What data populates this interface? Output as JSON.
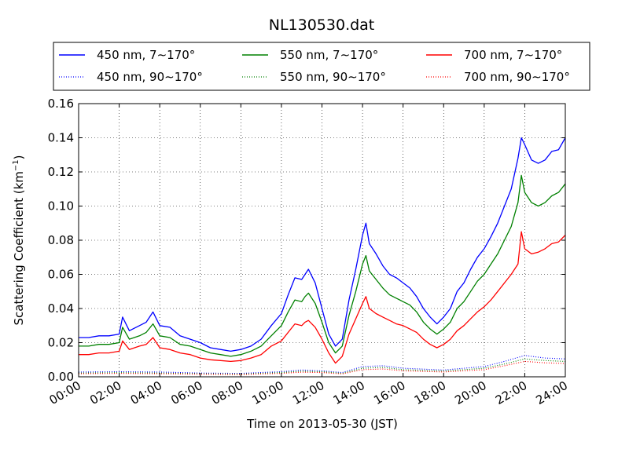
{
  "chart_data": {
    "type": "line",
    "title": "NL130530.dat",
    "xlabel": "Time on 2013-05-30 (JST)",
    "ylabel": "Scattering Coefficient (km",
    "ylabel_sup": "−1",
    "ylabel_close": ")",
    "x_ticks": [
      "00:00",
      "02:00",
      "04:00",
      "06:00",
      "08:00",
      "10:00",
      "12:00",
      "14:00",
      "16:00",
      "18:00",
      "20:00",
      "22:00",
      "24:00"
    ],
    "y_ticks": [
      "0.00",
      "0.02",
      "0.04",
      "0.06",
      "0.08",
      "0.10",
      "0.12",
      "0.14",
      "0.16"
    ],
    "xlim": [
      "00:00",
      "24:00"
    ],
    "ylim": [
      0,
      0.16
    ],
    "grid": true,
    "legend_placement": "top, outside plot, 3 columns",
    "series": [
      {
        "name": "450 nm, 7∼170°",
        "color": "#0000ff",
        "style": "solid",
        "x": [
          "00:00",
          "00:30",
          "01:00",
          "01:30",
          "02:00",
          "02:10",
          "02:30",
          "03:00",
          "03:20",
          "03:40",
          "04:00",
          "04:30",
          "05:00",
          "05:30",
          "06:00",
          "06:30",
          "07:00",
          "07:30",
          "08:00",
          "08:30",
          "09:00",
          "09:30",
          "10:00",
          "10:20",
          "10:40",
          "11:00",
          "11:10",
          "11:20",
          "11:40",
          "12:00",
          "12:20",
          "12:40",
          "13:00",
          "13:20",
          "13:40",
          "14:00",
          "14:10",
          "14:20",
          "14:40",
          "15:00",
          "15:20",
          "15:40",
          "16:00",
          "16:20",
          "16:40",
          "17:00",
          "17:20",
          "17:40",
          "18:00",
          "18:20",
          "18:40",
          "19:00",
          "19:20",
          "19:40",
          "20:00",
          "20:20",
          "20:40",
          "21:00",
          "21:20",
          "21:40",
          "21:50",
          "22:00",
          "22:20",
          "22:40",
          "23:00",
          "23:20",
          "23:40",
          "24:00"
        ],
        "values": [
          0.023,
          0.023,
          0.024,
          0.024,
          0.025,
          0.035,
          0.027,
          0.03,
          0.032,
          0.038,
          0.03,
          0.029,
          0.024,
          0.022,
          0.02,
          0.017,
          0.016,
          0.015,
          0.016,
          0.018,
          0.022,
          0.03,
          0.037,
          0.048,
          0.058,
          0.057,
          0.06,
          0.063,
          0.055,
          0.04,
          0.025,
          0.018,
          0.022,
          0.045,
          0.063,
          0.083,
          0.09,
          0.078,
          0.072,
          0.065,
          0.06,
          0.058,
          0.055,
          0.052,
          0.047,
          0.04,
          0.035,
          0.031,
          0.035,
          0.04,
          0.05,
          0.055,
          0.063,
          0.07,
          0.075,
          0.082,
          0.09,
          0.1,
          0.11,
          0.128,
          0.14,
          0.136,
          0.127,
          0.125,
          0.127,
          0.132,
          0.133,
          0.14
        ]
      },
      {
        "name": "550 nm, 7∼170°",
        "color": "#008000",
        "style": "solid",
        "x": [
          "00:00",
          "00:30",
          "01:00",
          "01:30",
          "02:00",
          "02:10",
          "02:30",
          "03:00",
          "03:20",
          "03:40",
          "04:00",
          "04:30",
          "05:00",
          "05:30",
          "06:00",
          "06:30",
          "07:00",
          "07:30",
          "08:00",
          "08:30",
          "09:00",
          "09:30",
          "10:00",
          "10:20",
          "10:40",
          "11:00",
          "11:10",
          "11:20",
          "11:40",
          "12:00",
          "12:20",
          "12:40",
          "13:00",
          "13:20",
          "13:40",
          "14:00",
          "14:10",
          "14:20",
          "14:40",
          "15:00",
          "15:20",
          "15:40",
          "16:00",
          "16:20",
          "16:40",
          "17:00",
          "17:20",
          "17:40",
          "18:00",
          "18:20",
          "18:40",
          "19:00",
          "19:20",
          "19:40",
          "20:00",
          "20:20",
          "20:40",
          "21:00",
          "21:20",
          "21:40",
          "21:50",
          "22:00",
          "22:20",
          "22:40",
          "23:00",
          "23:20",
          "23:40",
          "24:00"
        ],
        "values": [
          0.018,
          0.018,
          0.019,
          0.019,
          0.02,
          0.029,
          0.022,
          0.024,
          0.026,
          0.031,
          0.024,
          0.023,
          0.019,
          0.018,
          0.016,
          0.014,
          0.013,
          0.012,
          0.013,
          0.015,
          0.018,
          0.024,
          0.03,
          0.038,
          0.045,
          0.044,
          0.047,
          0.049,
          0.043,
          0.032,
          0.02,
          0.014,
          0.018,
          0.036,
          0.05,
          0.066,
          0.071,
          0.062,
          0.057,
          0.052,
          0.048,
          0.046,
          0.044,
          0.042,
          0.038,
          0.032,
          0.028,
          0.025,
          0.028,
          0.032,
          0.04,
          0.044,
          0.05,
          0.056,
          0.06,
          0.066,
          0.072,
          0.08,
          0.088,
          0.102,
          0.118,
          0.108,
          0.102,
          0.1,
          0.102,
          0.106,
          0.108,
          0.113
        ]
      },
      {
        "name": "700 nm, 7∼170°",
        "color": "#ff0000",
        "style": "solid",
        "x": [
          "00:00",
          "00:30",
          "01:00",
          "01:30",
          "02:00",
          "02:10",
          "02:30",
          "03:00",
          "03:20",
          "03:40",
          "04:00",
          "04:30",
          "05:00",
          "05:30",
          "06:00",
          "06:30",
          "07:00",
          "07:30",
          "08:00",
          "08:30",
          "09:00",
          "09:30",
          "10:00",
          "10:20",
          "10:40",
          "11:00",
          "11:10",
          "11:20",
          "11:40",
          "12:00",
          "12:20",
          "12:40",
          "13:00",
          "13:20",
          "13:40",
          "14:00",
          "14:10",
          "14:20",
          "14:40",
          "15:00",
          "15:20",
          "15:40",
          "16:00",
          "16:20",
          "16:40",
          "17:00",
          "17:20",
          "17:40",
          "18:00",
          "18:20",
          "18:40",
          "19:00",
          "19:20",
          "19:40",
          "20:00",
          "20:20",
          "20:40",
          "21:00",
          "21:20",
          "21:40",
          "21:50",
          "22:00",
          "22:20",
          "22:40",
          "23:00",
          "23:20",
          "23:40",
          "24:00"
        ],
        "values": [
          0.013,
          0.013,
          0.014,
          0.014,
          0.015,
          0.021,
          0.016,
          0.018,
          0.019,
          0.023,
          0.017,
          0.016,
          0.014,
          0.013,
          0.011,
          0.01,
          0.0095,
          0.009,
          0.0095,
          0.011,
          0.013,
          0.018,
          0.021,
          0.026,
          0.031,
          0.03,
          0.032,
          0.033,
          0.029,
          0.022,
          0.014,
          0.008,
          0.012,
          0.025,
          0.034,
          0.043,
          0.047,
          0.04,
          0.037,
          0.035,
          0.033,
          0.031,
          0.03,
          0.028,
          0.026,
          0.022,
          0.019,
          0.017,
          0.019,
          0.022,
          0.027,
          0.03,
          0.034,
          0.038,
          0.041,
          0.045,
          0.05,
          0.055,
          0.06,
          0.066,
          0.085,
          0.075,
          0.072,
          0.073,
          0.075,
          0.078,
          0.079,
          0.083
        ]
      },
      {
        "name": "450 nm, 90∼170°",
        "color": "#0000ff",
        "style": "dotted",
        "x": [
          "00:00",
          "02:00",
          "04:00",
          "06:00",
          "08:00",
          "10:00",
          "11:00",
          "12:00",
          "13:00",
          "14:00",
          "15:00",
          "16:00",
          "18:00",
          "20:00",
          "21:00",
          "22:00",
          "23:00",
          "24:00"
        ],
        "values": [
          0.0028,
          0.003,
          0.0028,
          0.0022,
          0.002,
          0.003,
          0.004,
          0.0035,
          0.0025,
          0.006,
          0.0065,
          0.005,
          0.004,
          0.006,
          0.009,
          0.0125,
          0.011,
          0.0105
        ]
      },
      {
        "name": "550 nm, 90∼170°",
        "color": "#008000",
        "style": "dotted",
        "x": [
          "00:00",
          "02:00",
          "04:00",
          "06:00",
          "08:00",
          "10:00",
          "11:00",
          "12:00",
          "13:00",
          "14:00",
          "15:00",
          "16:00",
          "18:00",
          "20:00",
          "21:00",
          "22:00",
          "23:00",
          "24:00"
        ],
        "values": [
          0.0022,
          0.0024,
          0.0022,
          0.0018,
          0.0016,
          0.0025,
          0.0033,
          0.003,
          0.002,
          0.005,
          0.0055,
          0.0042,
          0.0034,
          0.005,
          0.0075,
          0.0105,
          0.0095,
          0.009
        ]
      },
      {
        "name": "700 nm, 90∼170°",
        "color": "#ff0000",
        "style": "dotted",
        "x": [
          "00:00",
          "02:00",
          "04:00",
          "06:00",
          "08:00",
          "10:00",
          "11:00",
          "12:00",
          "13:00",
          "14:00",
          "15:00",
          "16:00",
          "18:00",
          "20:00",
          "21:00",
          "22:00",
          "23:00",
          "24:00"
        ],
        "values": [
          0.0018,
          0.002,
          0.0018,
          0.0015,
          0.0013,
          0.002,
          0.0027,
          0.0025,
          0.0017,
          0.0042,
          0.0046,
          0.0035,
          0.0028,
          0.0042,
          0.0065,
          0.009,
          0.0082,
          0.0078
        ]
      }
    ]
  }
}
